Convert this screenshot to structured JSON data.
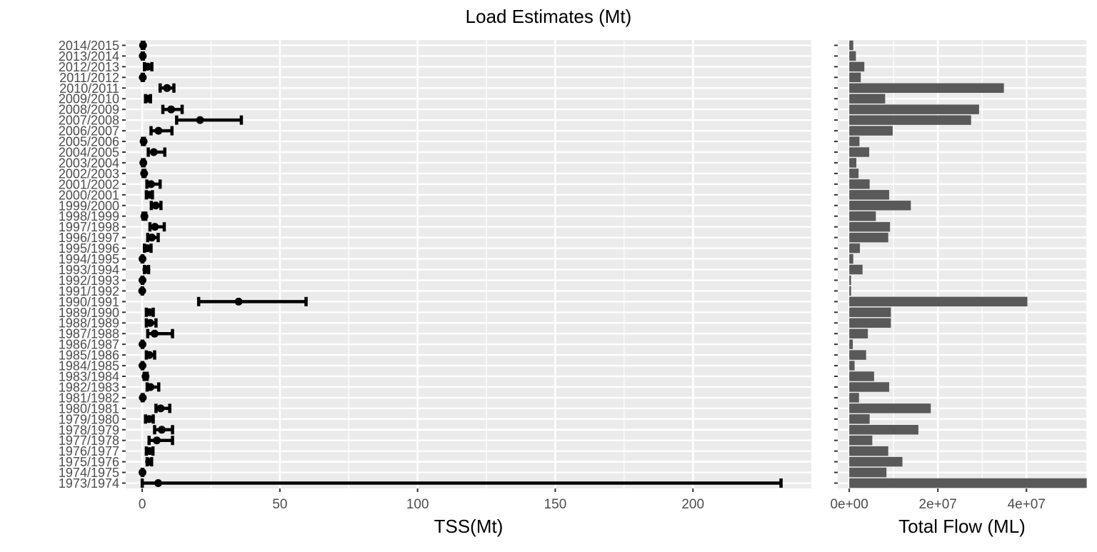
{
  "title": "Load Estimates (Mt)",
  "chart_data": [
    {
      "type": "scatter",
      "subtype": "point-with-error-bars",
      "xlabel": "TSS(Mt)",
      "ylabel": "",
      "xlim": [
        -6,
        243
      ],
      "xticks": [
        0,
        50,
        100,
        150,
        200
      ],
      "xtick_labels": [
        "0",
        "50",
        "100",
        "150",
        "200"
      ],
      "grid": true,
      "categories": [
        "1973/1974",
        "1974/1975",
        "1975/1976",
        "1976/1977",
        "1977/1978",
        "1978/1979",
        "1979/1980",
        "1980/1981",
        "1981/1982",
        "1982/1983",
        "1983/1984",
        "1984/1985",
        "1985/1986",
        "1986/1987",
        "1987/1988",
        "1988/1989",
        "1989/1990",
        "1990/1991",
        "1991/1992",
        "1992/1993",
        "1993/1994",
        "1994/1995",
        "1995/1996",
        "1996/1997",
        "1997/1998",
        "1998/1999",
        "1999/2000",
        "2000/2001",
        "2001/2002",
        "2002/2003",
        "2003/2004",
        "2004/2005",
        "2005/2006",
        "2006/2007",
        "2007/2008",
        "2008/2009",
        "2009/2010",
        "2010/2011",
        "2011/2012",
        "2012/2013",
        "2013/2014",
        "2014/2015"
      ],
      "estimate": [
        5.8,
        0.1,
        2.5,
        2.7,
        5.3,
        7.1,
        2.5,
        6.7,
        0.2,
        3.0,
        1.2,
        0.1,
        2.6,
        0.1,
        4.5,
        2.9,
        2.7,
        35.0,
        0.0,
        0.1,
        1.5,
        0.1,
        1.8,
        3.5,
        4.6,
        0.8,
        4.9,
        2.5,
        3.2,
        0.7,
        0.4,
        4.2,
        0.5,
        5.9,
        21.0,
        10.5,
        2.1,
        9.0,
        0.2,
        2.0,
        0.2,
        0.3
      ],
      "lower": [
        0.0,
        0.0,
        1.8,
        1.5,
        2.5,
        4.5,
        1.2,
        5.0,
        0.0,
        1.8,
        0.7,
        0.0,
        1.5,
        0.0,
        2.0,
        1.5,
        1.5,
        20.5,
        0.0,
        0.0,
        0.8,
        0.0,
        0.8,
        2.0,
        2.8,
        0.3,
        3.3,
        1.5,
        1.7,
        0.3,
        0.1,
        2.2,
        0.1,
        3.2,
        12.5,
        7.5,
        1.2,
        6.5,
        0.0,
        0.8,
        0.0,
        0.0
      ],
      "upper": [
        232.0,
        0.2,
        3.4,
        3.9,
        11.0,
        11.0,
        4.0,
        10.0,
        0.3,
        6.0,
        1.8,
        0.2,
        4.5,
        0.2,
        11.0,
        5.0,
        4.0,
        59.5,
        0.1,
        0.2,
        2.3,
        0.2,
        3.2,
        5.8,
        8.0,
        1.3,
        6.8,
        3.7,
        6.5,
        1.0,
        0.7,
        8.2,
        0.8,
        10.8,
        36.0,
        14.5,
        3.0,
        11.5,
        0.4,
        3.5,
        0.4,
        0.6
      ]
    },
    {
      "type": "bar",
      "orientation": "horizontal",
      "xlabel": "Total Flow (ML)",
      "ylabel": "",
      "xlim": [
        -2600000,
        53500000
      ],
      "xticks": [
        0,
        20000000,
        40000000
      ],
      "xtick_labels": [
        "0e+00",
        "2e+07",
        "4e+07"
      ],
      "grid": true,
      "categories_same_as": "previous",
      "values": [
        53600000,
        8400000,
        12000000,
        8800000,
        5200000,
        15600000,
        4600000,
        18400000,
        2200000,
        9000000,
        5600000,
        1200000,
        3800000,
        800000,
        4200000,
        9400000,
        9400000,
        40200000,
        400000,
        400000,
        3000000,
        900000,
        2400000,
        8800000,
        9200000,
        6000000,
        13900000,
        9000000,
        4600000,
        2100000,
        1600000,
        4500000,
        2300000,
        9800000,
        27500000,
        29300000,
        8100000,
        34900000,
        2600000,
        3400000,
        1500000,
        900000
      ]
    }
  ]
}
